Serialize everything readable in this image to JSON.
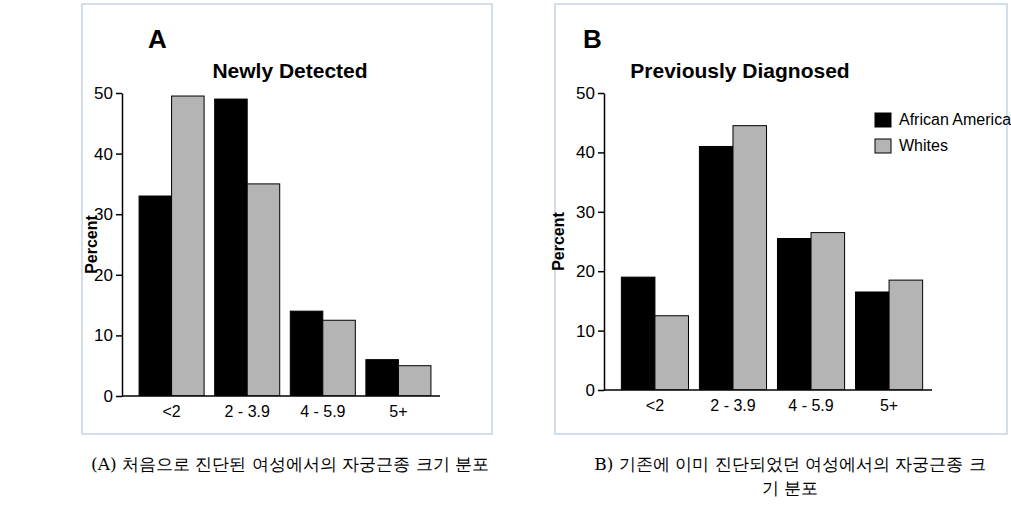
{
  "chart_data": [
    {
      "type": "bar",
      "panel_label": "A",
      "title": "Newly Detected",
      "caption": "(A) 처음으로 진단된 여성에서의 자궁근종 크기 분포",
      "ylabel": "Percent",
      "categories": [
        "<2",
        "2 - 3.9",
        "4 - 5.9",
        "5+"
      ],
      "series": [
        {
          "name": "African Americans",
          "color": "#000000",
          "values": [
            33,
            49,
            14,
            6
          ]
        },
        {
          "name": "Whites",
          "color": "#b4b4b4",
          "values": [
            49.5,
            35,
            12.5,
            5
          ]
        }
      ],
      "ylim": [
        0,
        50
      ],
      "yticks": [
        0,
        10,
        20,
        30,
        40,
        50
      ]
    },
    {
      "type": "bar",
      "panel_label": "B",
      "title": "Previously Diagnosed",
      "caption": "B) 기존에 이미 진단되었던 여성에서의 자궁근종 크기 분포",
      "ylabel": "Percent",
      "categories": [
        "<2",
        "2 - 3.9",
        "4 - 5.9",
        "5+"
      ],
      "series": [
        {
          "name": "African Americans",
          "color": "#000000",
          "values": [
            19,
            41,
            25.5,
            16.5
          ]
        },
        {
          "name": "Whites",
          "color": "#b4b4b4",
          "values": [
            12.5,
            44.5,
            26.5,
            18.5
          ]
        }
      ],
      "ylim": [
        0,
        50
      ],
      "yticks": [
        0,
        10,
        20,
        30,
        40,
        50
      ],
      "legend": "upper right"
    }
  ]
}
